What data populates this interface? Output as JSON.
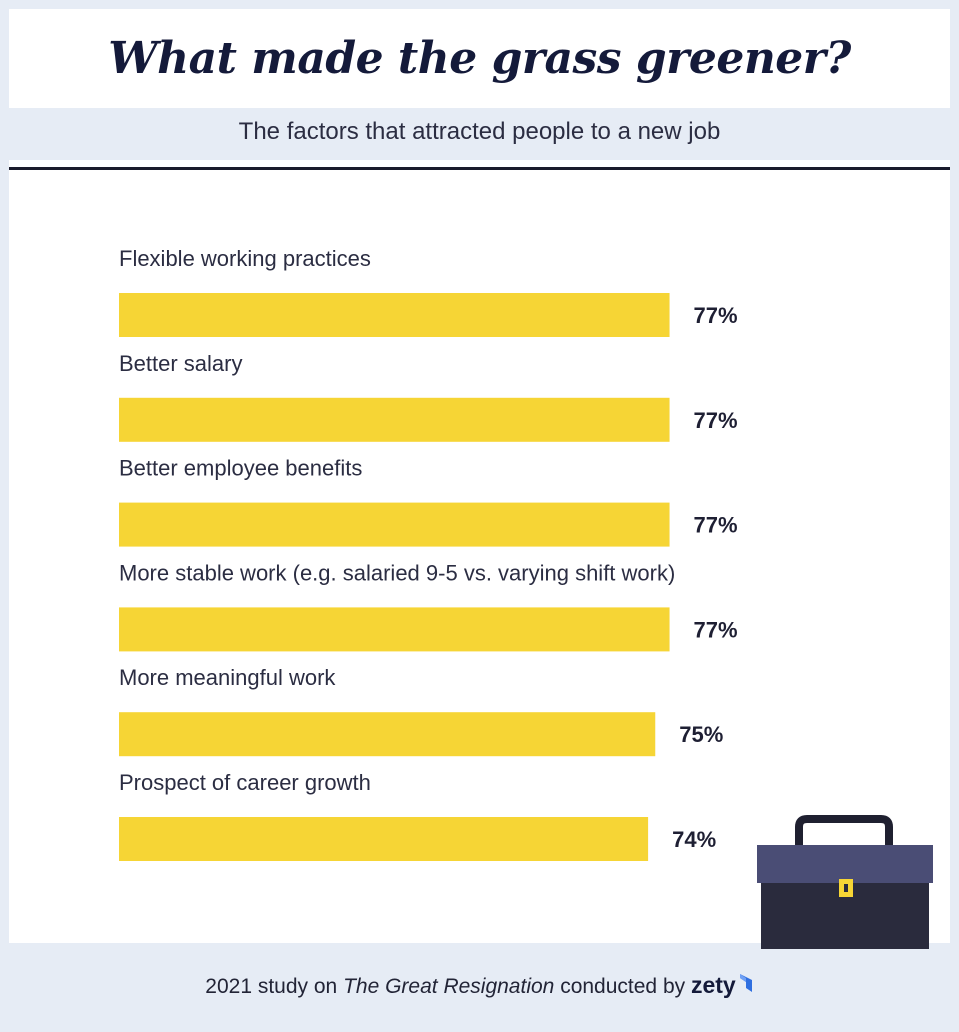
{
  "header": {
    "title": "What made the grass greener?",
    "subtitle": "The factors that attracted people to a new job"
  },
  "chart_data": {
    "type": "bar",
    "orientation": "horizontal",
    "categories": [
      "Flexible working practices",
      "Better salary",
      "Better employee benefits",
      "More stable work (e.g. salaried 9-5 vs. varying shift work)",
      "More meaningful work",
      "Prospect of career growth"
    ],
    "values": [
      77,
      77,
      77,
      77,
      75,
      74
    ],
    "value_labels": [
      "77%",
      "77%",
      "77%",
      "77%",
      "75%",
      "74%"
    ],
    "unit": "%",
    "bar_color": "#f6d535",
    "grid": false,
    "legend": false
  },
  "footer": {
    "prefix": "2021 study on ",
    "study_name": "The Great Resignation",
    "middle": " conducted by ",
    "brand": "zety"
  },
  "icons": {
    "briefcase": "briefcase-icon",
    "brand_mark": "zety-logo-icon"
  },
  "colors": {
    "background": "#e6ecf5",
    "title": "#141a3a",
    "bar": "#f6d535",
    "briefcase_body": "#2a2b3d",
    "briefcase_flap": "#4a4d75",
    "brand_blue": "#2f6fe0"
  }
}
